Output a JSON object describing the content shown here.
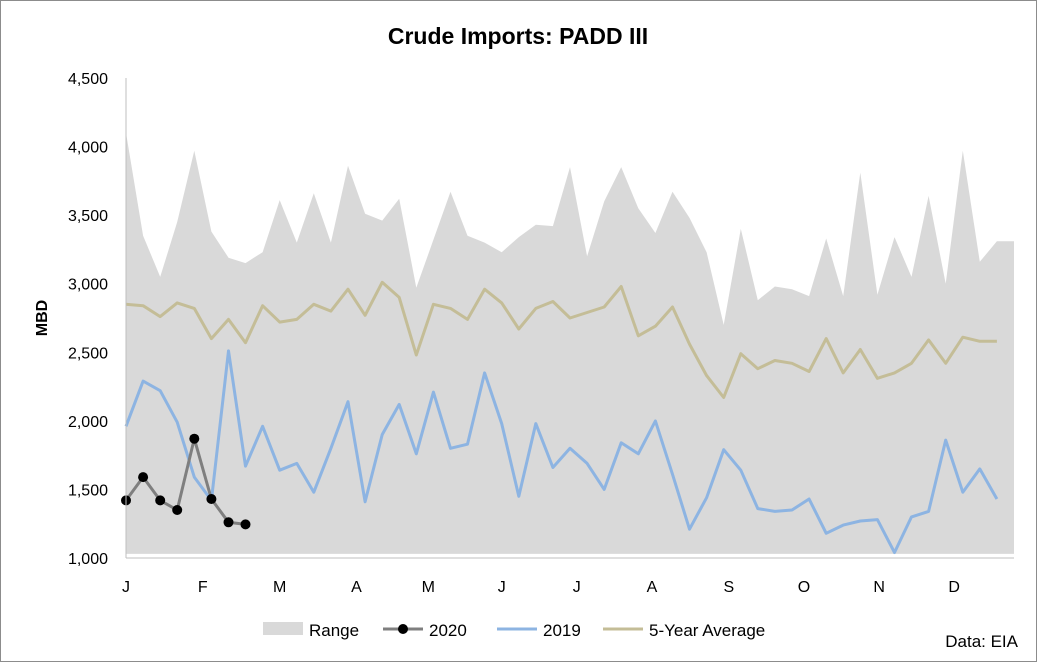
{
  "chart_data": {
    "type": "line",
    "title": "Crude Imports: PADD III",
    "ylabel": "MBD",
    "xlabel": "",
    "ylim": [
      1000,
      4500
    ],
    "yticks": [
      "1,000",
      "1,500",
      "2,000",
      "2,500",
      "3,000",
      "3,500",
      "4,000",
      "4,500"
    ],
    "ytick_values": [
      1000,
      1500,
      2000,
      2500,
      3000,
      3500,
      4000,
      4500
    ],
    "month_labels": [
      "J",
      "F",
      "M",
      "A",
      "M",
      "J",
      "J",
      "A",
      "S",
      "O",
      "N",
      "D"
    ],
    "month_label_weeks": [
      1,
      5.5,
      10,
      14.5,
      18.7,
      23,
      27.4,
      31.8,
      36.3,
      40.7,
      45.1,
      49.5
    ],
    "weeks": 53,
    "grid": false,
    "legend_position": "bottom",
    "range_high": [
      4100,
      3350,
      3050,
      3450,
      3970,
      3380,
      3190,
      3150,
      3230,
      3610,
      3300,
      3660,
      3300,
      3860,
      3510,
      3460,
      3620,
      2970,
      3320,
      3670,
      3350,
      3300,
      3230,
      3340,
      3430,
      3420,
      3850,
      3200,
      3600,
      3850,
      3550,
      3370,
      3670,
      3480,
      3230,
      2700,
      3400,
      2880,
      2980,
      2960,
      2910,
      3330,
      2910,
      3810,
      2920,
      3340,
      3050,
      3640,
      3000,
      3970,
      3160,
      3310,
      3310
    ],
    "range_low": [
      1030,
      1030,
      1030,
      1030,
      1030,
      1030,
      1030,
      1030,
      1030,
      1030,
      1030,
      1030,
      1030,
      1030,
      1030,
      1030,
      1030,
      1030,
      1030,
      1030,
      1030,
      1030,
      1030,
      1030,
      1030,
      1030,
      1030,
      1030,
      1030,
      1030,
      1030,
      1030,
      1030,
      1030,
      1030,
      1030,
      1030,
      1030,
      1030,
      1030,
      1030,
      1030,
      1030,
      1030,
      1030,
      1030,
      1030,
      1030,
      1030,
      1030,
      1030,
      1030,
      1030
    ],
    "series": [
      {
        "name": "2020",
        "color": "#7f7f7f",
        "marker_color": "#000000",
        "values": [
          1420,
          1590,
          1420,
          1350,
          1870,
          1430,
          1260,
          1245
        ]
      },
      {
        "name": "2019",
        "color": "#8db4e2",
        "values": [
          1960,
          2290,
          2220,
          1990,
          1590,
          1420,
          2510,
          1670,
          1960,
          1640,
          1690,
          1480,
          1800,
          2140,
          1410,
          1900,
          2120,
          1760,
          2210,
          1800,
          1830,
          2350,
          1980,
          1450,
          1980,
          1660,
          1800,
          1690,
          1500,
          1840,
          1760,
          2000,
          1610,
          1210,
          1440,
          1790,
          1640,
          1360,
          1340,
          1350,
          1430,
          1180,
          1240,
          1270,
          1280,
          1040,
          1300,
          1340,
          1860,
          1480,
          1650,
          1430
        ]
      },
      {
        "name": "5-Year Average",
        "color": "#c4bd97",
        "values": [
          2850,
          2840,
          2760,
          2860,
          2820,
          2600,
          2740,
          2570,
          2840,
          2720,
          2740,
          2850,
          2800,
          2960,
          2770,
          3010,
          2900,
          2480,
          2850,
          2820,
          2740,
          2960,
          2860,
          2670,
          2820,
          2870,
          2750,
          2790,
          2830,
          2980,
          2620,
          2690,
          2830,
          2560,
          2330,
          2170,
          2490,
          2380,
          2440,
          2420,
          2360,
          2600,
          2350,
          2520,
          2310,
          2350,
          2420,
          2590,
          2420,
          2610,
          2580,
          2580
        ]
      }
    ],
    "range_name": "Range",
    "range_color": "#d9d9d9"
  },
  "legend": {
    "items": [
      "Range",
      "2020",
      "2019",
      "5-Year Average"
    ]
  },
  "source_text": "Data: EIA"
}
